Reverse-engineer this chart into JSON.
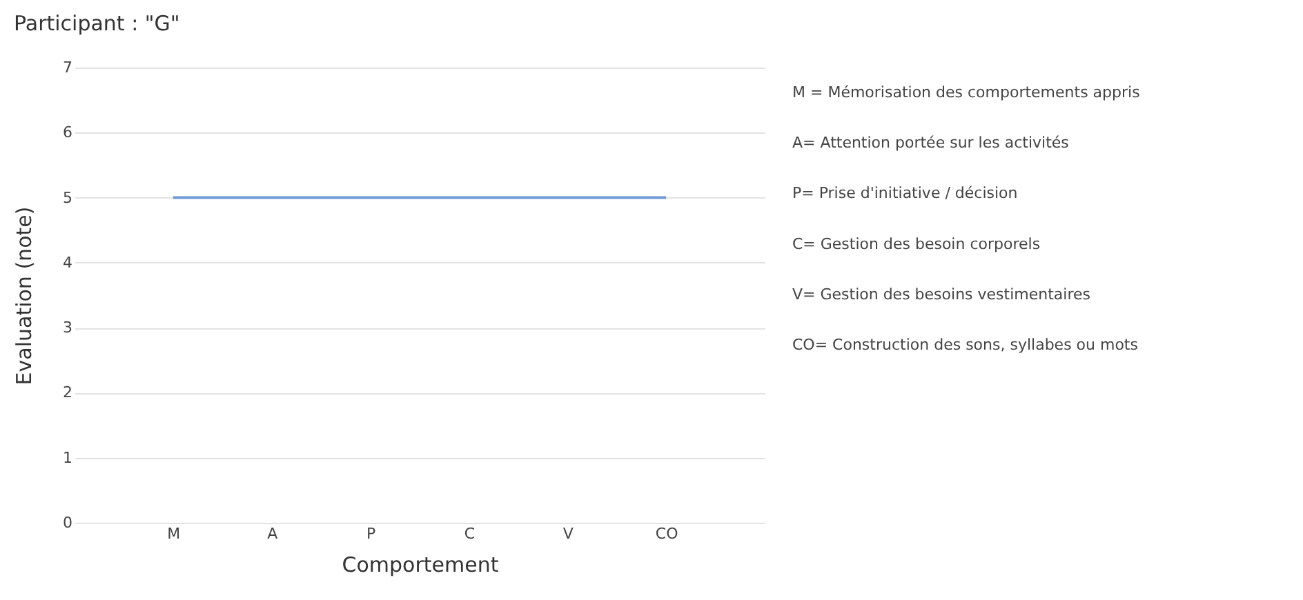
{
  "chart_data": {
    "type": "line",
    "title": "Participant : \"G\"",
    "xlabel": "Comportement",
    "ylabel": "Evaluation (note)",
    "categories": [
      "M",
      "A",
      "P",
      "C",
      "V",
      "CO"
    ],
    "series": [
      {
        "color": "#6f9ad8",
        "values": [
          5,
          5,
          5,
          5,
          5,
          5
        ]
      }
    ],
    "ylim": [
      0,
      7
    ],
    "yticks": [
      0,
      1,
      2,
      3,
      4,
      5,
      6,
      7
    ],
    "grid": "y",
    "marker": "none",
    "line_style": "solid",
    "annotations": [
      "M = Mémorisation des comportements appris",
      "A= Attention portée sur les activités",
      "P= Prise d'initiative / décision",
      "C= Gestion des besoin corporels",
      "V= Gestion des besoins vestimentaires",
      "CO= Construction des sons, syllabes ou mots"
    ]
  }
}
